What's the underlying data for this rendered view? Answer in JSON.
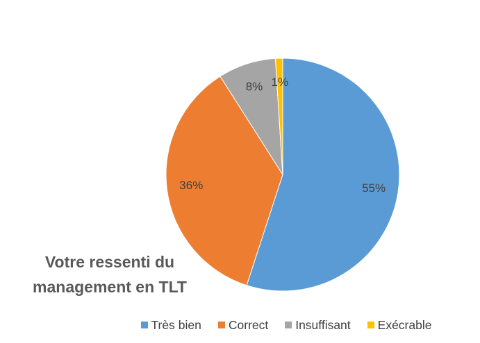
{
  "chart_data": {
    "type": "pie",
    "title": "Votre ressenti du management en TLT",
    "categories": [
      "Très bien",
      "Correct",
      "Insuffisant",
      "Exécrable"
    ],
    "values": [
      55,
      36,
      8,
      1
    ],
    "value_labels": [
      "55%",
      "36%",
      "8%",
      "1%"
    ],
    "colors": [
      "#5b9bd5",
      "#ed7d31",
      "#a5a5a5",
      "#ffc000"
    ],
    "legend": "bottom"
  }
}
